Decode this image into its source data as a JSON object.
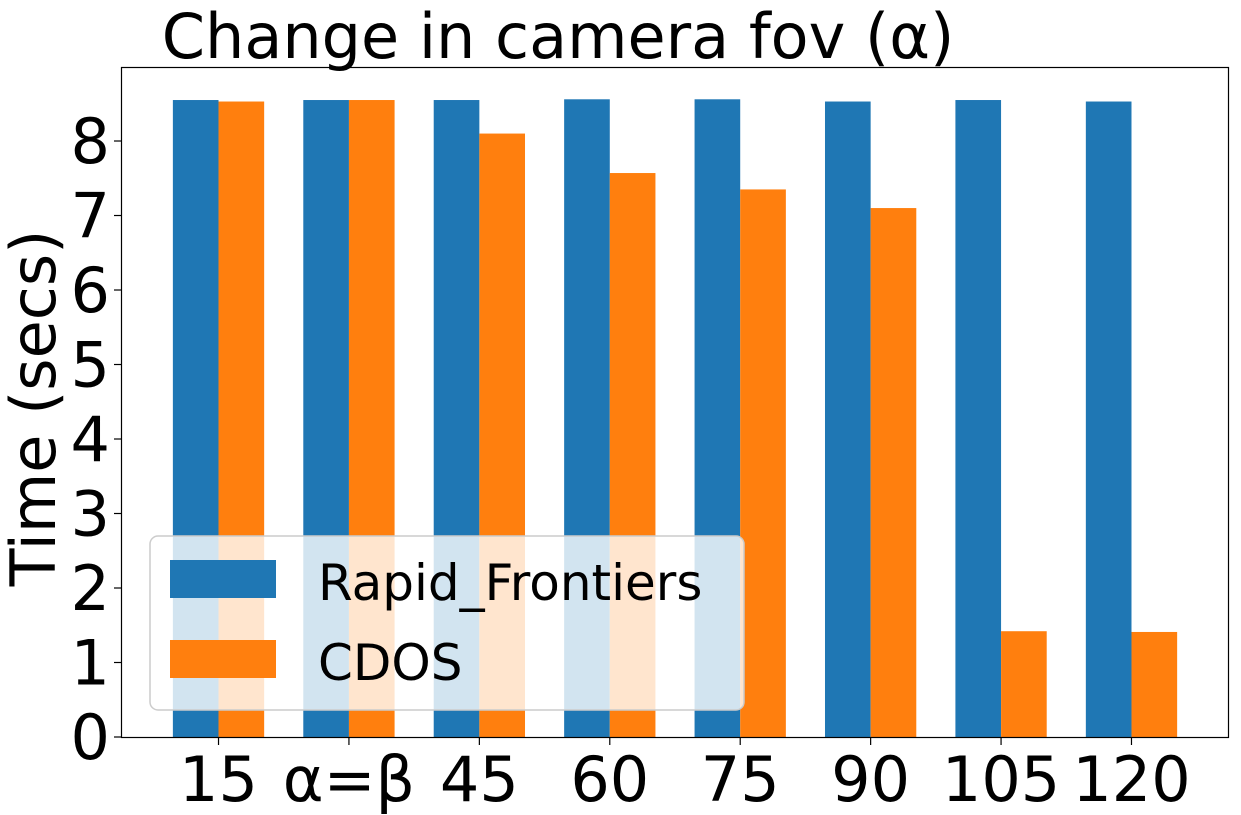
{
  "chart_data": {
    "type": "bar",
    "title": "Change in camera fov (α)",
    "xlabel": "",
    "ylabel": "Time (secs)",
    "categories": [
      "15",
      "α=β",
      "45",
      "60",
      "75",
      "90",
      "105",
      "120"
    ],
    "series": [
      {
        "name": "Rapid_Frontiers",
        "color": "#1f77b4",
        "values": [
          8.55,
          8.55,
          8.55,
          8.56,
          8.56,
          8.53,
          8.55,
          8.53
        ]
      },
      {
        "name": "CDOS",
        "color": "#ff7f0e",
        "values": [
          8.53,
          8.55,
          8.1,
          7.57,
          7.35,
          7.1,
          1.42,
          1.41
        ]
      }
    ],
    "ylim": [
      0,
      8.98
    ],
    "yticks": [
      "0",
      "1",
      "2",
      "3",
      "4",
      "5",
      "6",
      "7",
      "8"
    ],
    "grid": false,
    "legend": "lower-left"
  }
}
